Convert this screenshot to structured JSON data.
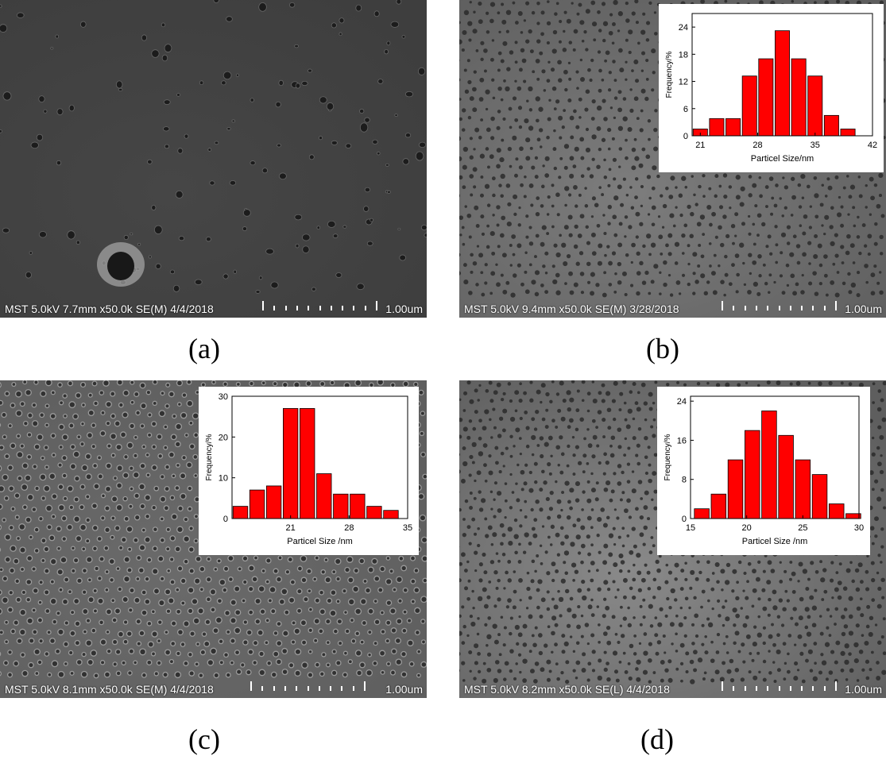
{
  "panels": [
    {
      "id": "a",
      "caption": "(a)",
      "info": "MST 5.0kV 7.7mm x50.0k SE(M) 4/4/2018",
      "scale": "1.00um",
      "texture": "sparse-pores",
      "bg_color": "#464646"
    },
    {
      "id": "b",
      "caption": "(b)",
      "info": "MST 5.0kV 9.4mm x50.0k SE(M) 3/28/2018",
      "scale": "1.00um",
      "texture": "dense-pores",
      "bg_color": "#7d7d7d"
    },
    {
      "id": "c",
      "caption": "(c)",
      "info": "MST 5.0kV 8.1mm x50.0k SE(M) 4/4/2018",
      "scale": "1.00um",
      "texture": "ringed-pores",
      "bg_color": "#6a6a6a"
    },
    {
      "id": "d",
      "caption": "(d)",
      "info": "MST 5.0kV 8.2mm x50.0k SE(L) 4/4/2018",
      "scale": "1.00um",
      "texture": "dark-pores",
      "bg_color": "#8a8a8a"
    }
  ],
  "chart_data": [
    {
      "panel": "b",
      "type": "bar",
      "xlabel": "Particel Size/nm",
      "ylabel": "Frequency/%",
      "xlim": [
        20,
        42
      ],
      "ylim": [
        0,
        27
      ],
      "xticks": [
        21,
        28,
        35,
        42
      ],
      "yticks": [
        0,
        6,
        12,
        18,
        24
      ],
      "bar_color": "#ff0000",
      "x": [
        21,
        23,
        25,
        27,
        29,
        31,
        33,
        35,
        37,
        39
      ],
      "values": [
        1.5,
        3.8,
        3.8,
        13.2,
        17.0,
        23.2,
        17.0,
        13.2,
        4.5,
        1.5
      ]
    },
    {
      "panel": "c",
      "type": "bar",
      "xlabel": "Particel Size /nm",
      "ylabel": "Frequency/%",
      "xlim": [
        14,
        35
      ],
      "ylim": [
        0,
        30
      ],
      "xticks": [
        21,
        28,
        35
      ],
      "yticks": [
        0,
        10,
        20,
        30
      ],
      "bar_color": "#ff0000",
      "x": [
        15,
        17,
        19,
        21,
        23,
        25,
        27,
        29,
        31,
        33
      ],
      "values": [
        3,
        7,
        8,
        27,
        27,
        11,
        6,
        6,
        3,
        2
      ]
    },
    {
      "panel": "d",
      "type": "bar",
      "xlabel": "Particel Size /nm",
      "ylabel": "Frequency/%",
      "xlim": [
        15,
        30
      ],
      "ylim": [
        0,
        25
      ],
      "xticks": [
        15,
        20,
        25,
        30
      ],
      "yticks": [
        0,
        8,
        16,
        24
      ],
      "bar_color": "#ff0000",
      "x": [
        16,
        17.5,
        19,
        20.5,
        22,
        23.5,
        25,
        26.5,
        28,
        29.5
      ],
      "values": [
        2,
        5,
        12,
        18,
        22,
        17,
        12,
        9,
        3,
        1
      ]
    }
  ]
}
